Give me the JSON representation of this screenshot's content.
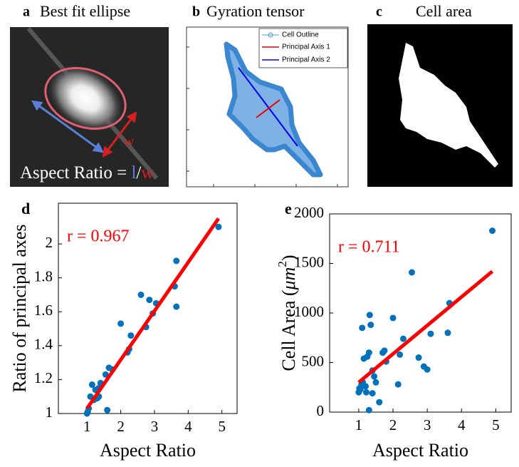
{
  "panels": {
    "a": {
      "letter": "a",
      "title": "Best fit ellipse",
      "arrow_label": "w",
      "caption": [
        "Aspect Ratio = ",
        "l",
        "/",
        "w"
      ]
    },
    "b": {
      "letter": "b",
      "title": "Gyration tensor",
      "legend": [
        "Cell Outline",
        "Principal Axis 1",
        "Principal Axis 2"
      ]
    },
    "c": {
      "letter": "c",
      "title": "Cell area"
    }
  },
  "chart_data": [
    {
      "type": "scatter",
      "letter": "d",
      "xlabel": "Aspect Ratio",
      "ylabel": "Ratio of principal axes",
      "annotation": "r = 0.967",
      "color": "#0072bd",
      "fit_color": "#ff0000",
      "x": [
        1.0,
        1.02,
        1.05,
        1.1,
        1.15,
        1.2,
        1.25,
        1.3,
        1.35,
        1.4,
        1.35,
        1.6,
        1.55,
        1.65,
        1.75,
        2.0,
        2.2,
        2.25,
        2.3,
        2.6,
        2.75,
        2.85,
        2.95,
        3.05,
        3.6,
        3.65,
        3.65,
        4.9
      ],
      "y": [
        1.0,
        1.01,
        1.03,
        1.1,
        1.17,
        1.08,
        1.14,
        1.09,
        1.1,
        1.18,
        1.15,
        1.02,
        1.23,
        1.27,
        1.26,
        1.53,
        1.36,
        1.38,
        1.46,
        1.7,
        1.51,
        1.67,
        1.59,
        1.65,
        1.75,
        1.63,
        1.9,
        2.1
      ],
      "fit": {
        "x": [
          1,
          4.9
        ],
        "y": [
          1.03,
          2.15
        ]
      },
      "xlim": [
        0.15,
        5.45
      ],
      "ylim": [
        1,
        2.24
      ],
      "xticks": [
        1,
        2,
        3,
        4,
        5
      ],
      "yticks": [
        1,
        1.2,
        1.4,
        1.6,
        1.8,
        2
      ]
    },
    {
      "type": "scatter",
      "letter": "e",
      "xlabel": "Aspect Ratio",
      "ylabel": "Cell Area (",
      "ylabel_unit": "μm",
      "ylabel_sup": "2",
      "ylabel_end": ")",
      "annotation": "r = 0.711",
      "color": "#0072bd",
      "fit_color": "#ff0000",
      "x": [
        1.0,
        1.02,
        1.05,
        1.08,
        1.1,
        1.12,
        1.15,
        1.2,
        1.22,
        1.25,
        1.3,
        1.3,
        1.32,
        1.35,
        1.4,
        1.4,
        1.45,
        1.5,
        1.6,
        1.7,
        1.75,
        1.8,
        2.0,
        2.15,
        2.2,
        2.3,
        2.55,
        2.75,
        2.9,
        3.0,
        3.1,
        3.6,
        3.65,
        4.9
      ],
      "y": [
        200,
        240,
        230,
        280,
        850,
        300,
        540,
        260,
        200,
        560,
        20,
        600,
        980,
        880,
        420,
        190,
        360,
        300,
        100,
        600,
        620,
        510,
        950,
        280,
        580,
        740,
        1410,
        550,
        460,
        430,
        790,
        800,
        1100,
        1830
      ],
      "fit": {
        "x": [
          1,
          4.9
        ],
        "y": [
          300,
          1420
        ]
      },
      "xlim": [
        0.15,
        5.45
      ],
      "ylim": [
        0,
        2000
      ],
      "xticks": [
        1,
        2,
        3,
        4,
        5
      ],
      "yticks": [
        0,
        500,
        1000,
        1500,
        2000
      ]
    }
  ]
}
